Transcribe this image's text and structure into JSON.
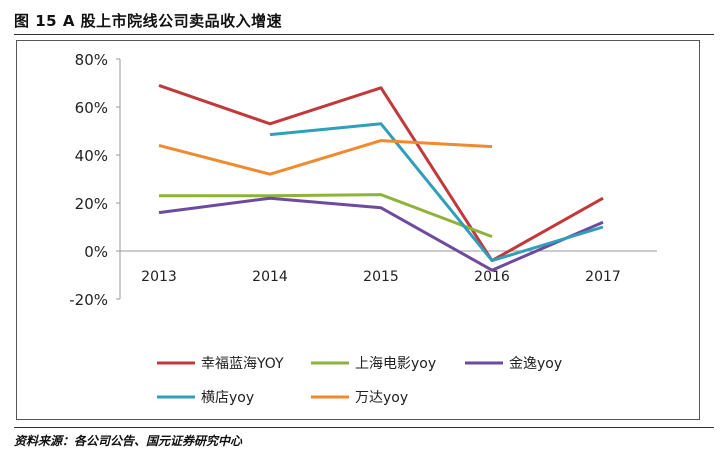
{
  "figure": {
    "title": "图 15 A 股上市院线公司卖品收入增速",
    "source": "资料来源：各公司公告、国元证券研究中心"
  },
  "chart_data": {
    "type": "line",
    "categories": [
      "2013",
      "2014",
      "2015",
      "2016",
      "2017"
    ],
    "y_ticks": [
      "80%",
      "60%",
      "40%",
      "20%",
      "0%",
      "-20%"
    ],
    "ylim": [
      -0.2,
      0.8
    ],
    "grid": false,
    "legend_position": "bottom",
    "series": [
      {
        "name": "幸福蓝海YOY",
        "color": "#c0393b",
        "values": [
          0.69,
          0.53,
          0.68,
          -0.04,
          0.22
        ]
      },
      {
        "name": "上海电影yoy",
        "color": "#8db33a",
        "values": [
          0.23,
          0.23,
          0.235,
          0.06,
          null
        ]
      },
      {
        "name": "金逸yoy",
        "color": "#6e4a9e",
        "values": [
          0.16,
          0.22,
          0.18,
          -0.08,
          0.12
        ]
      },
      {
        "name": "横店yoy",
        "color": "#2f9fba",
        "values": [
          null,
          0.485,
          0.53,
          -0.04,
          0.1
        ]
      },
      {
        "name": "万达yoy",
        "color": "#f08a2e",
        "values": [
          0.44,
          0.32,
          0.46,
          0.435,
          null
        ]
      }
    ]
  }
}
